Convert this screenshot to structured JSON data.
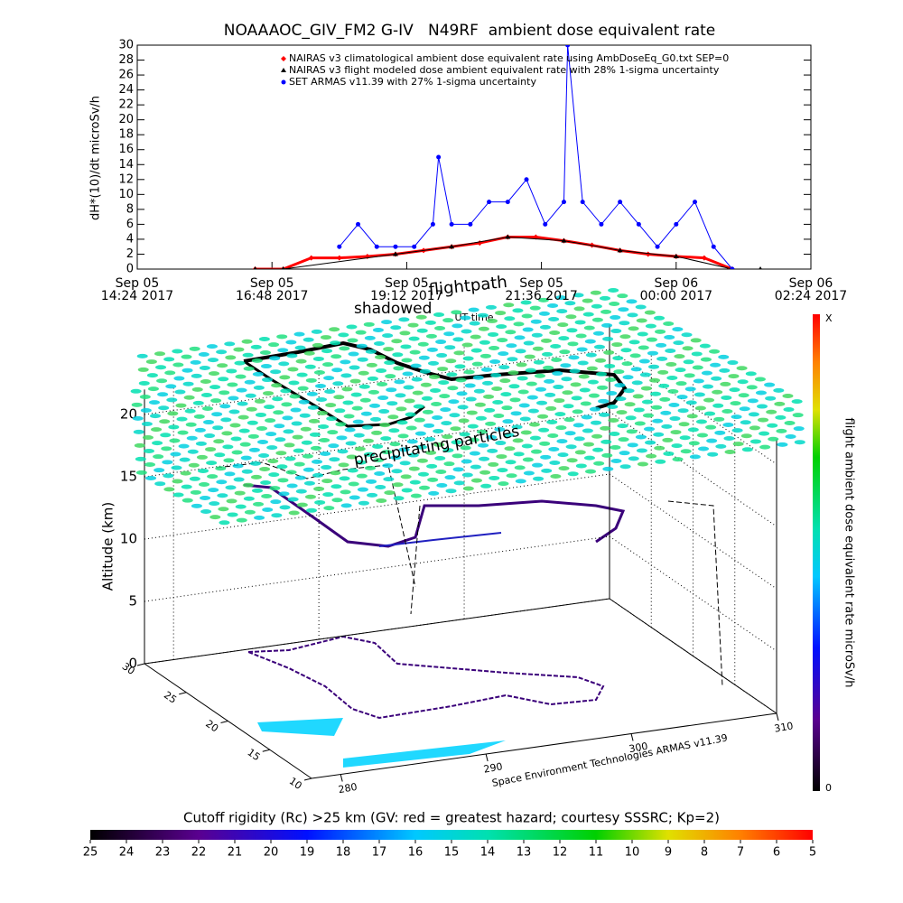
{
  "chart_data": [
    {
      "type": "line",
      "title": "NOAAAOC_GIV_FM2 G-IV   N49RF  ambient dose equivalent rate",
      "ylabel": "dH*(10)/dt microSv/h",
      "xlabel": "UT time",
      "xlim": [
        "2017-09-05 14:24",
        "2017-09-06 02:24"
      ],
      "xticks": [
        {
          "value": "2017-09-05 14:24",
          "label": [
            "Sep 05",
            "14:24 2017"
          ]
        },
        {
          "value": "2017-09-05 16:48",
          "label": [
            "Sep 05",
            "16:48 2017"
          ]
        },
        {
          "value": "2017-09-05 19:12",
          "label": [
            "Sep 05",
            "19:12 2017"
          ]
        },
        {
          "value": "2017-09-05 21:36",
          "label": [
            "Sep 05",
            "21:36 2017"
          ]
        },
        {
          "value": "2017-09-06 00:00",
          "label": [
            "Sep 06",
            "00:00 2017"
          ]
        },
        {
          "value": "2017-09-06 02:24",
          "label": [
            "Sep 06",
            "02:24 2017"
          ]
        }
      ],
      "ylim": [
        0,
        30
      ],
      "yticks": [
        0,
        2,
        4,
        6,
        8,
        10,
        12,
        14,
        16,
        18,
        20,
        22,
        24,
        26,
        28,
        30
      ],
      "legend": "top",
      "series": [
        {
          "name": "NAIRAS v3 climatological ambient dose equivalent rate using AmbDoseEq_G0.txt SEP=0",
          "color": "#ff0000",
          "marker": "diamond",
          "x": [
            "2017-09-05 16:30",
            "2017-09-05 17:00",
            "2017-09-05 17:30",
            "2017-09-05 18:00",
            "2017-09-05 18:30",
            "2017-09-05 19:00",
            "2017-09-05 19:30",
            "2017-09-05 20:00",
            "2017-09-05 20:30",
            "2017-09-05 21:00",
            "2017-09-05 21:30",
            "2017-09-05 22:00",
            "2017-09-05 22:30",
            "2017-09-05 23:00",
            "2017-09-05 23:30",
            "2017-09-06 00:00",
            "2017-09-06 00:30",
            "2017-09-06 01:00"
          ],
          "values": [
            0,
            0,
            1.5,
            1.5,
            1.7,
            2,
            2.5,
            3,
            3.5,
            4.3,
            4.3,
            3.8,
            3.2,
            2.5,
            2,
            1.7,
            1.5,
            0
          ]
        },
        {
          "name": "NAIRAS v3 flight modeled dose ambient equivalent rate with 28% 1-sigma uncertainty",
          "color": "#000000",
          "marker": "triangle",
          "x": [
            "2017-09-05 16:30",
            "2017-09-05 17:00",
            "2017-09-05 19:00",
            "2017-09-05 20:00",
            "2017-09-05 21:00",
            "2017-09-05 22:00",
            "2017-09-05 23:00",
            "2017-09-06 00:00",
            "2017-09-06 01:00",
            "2017-09-06 01:30"
          ],
          "values": [
            0,
            0,
            2,
            3,
            4.3,
            3.8,
            2.5,
            1.7,
            0,
            0
          ]
        },
        {
          "name": "SET ARMAS v11.39 with 27% 1-sigma uncertainty",
          "color": "#0000ff",
          "marker": "circle",
          "x": [
            "2017-09-05 18:00",
            "2017-09-05 18:20",
            "2017-09-05 18:40",
            "2017-09-05 19:00",
            "2017-09-05 19:20",
            "2017-09-05 19:40",
            "2017-09-05 19:46",
            "2017-09-05 20:00",
            "2017-09-05 20:20",
            "2017-09-05 20:40",
            "2017-09-05 21:00",
            "2017-09-05 21:20",
            "2017-09-05 21:40",
            "2017-09-05 22:00",
            "2017-09-05 22:04",
            "2017-09-05 22:20",
            "2017-09-05 22:40",
            "2017-09-05 23:00",
            "2017-09-05 23:20",
            "2017-09-05 23:40",
            "2017-09-06 00:00",
            "2017-09-06 00:20",
            "2017-09-06 00:40",
            "2017-09-06 01:00"
          ],
          "values": [
            3,
            6,
            3,
            3,
            3,
            6,
            15,
            6,
            6,
            9,
            9,
            12,
            6,
            9,
            30,
            9,
            6,
            9,
            6,
            3,
            6,
            9,
            3,
            0
          ]
        }
      ]
    },
    {
      "type": "surface3d",
      "zlabel": "Altitude (km)",
      "zlim": [
        0,
        20
      ],
      "zticks": [
        0,
        5,
        10,
        15,
        20
      ],
      "ylim": [
        10,
        30
      ],
      "yticks": [
        10,
        15,
        20,
        25,
        30
      ],
      "xlim": [
        278,
        310
      ],
      "xticks": [
        280,
        290,
        300,
        310
      ],
      "annotations": [
        "shadowed",
        "flightpath",
        "precipitating particles"
      ],
      "caption": "Space Environment Technologies ARMAS v11.39",
      "colorbar": {
        "label": "flight ambient dose equivalent rate microSv/h",
        "top_label": "X",
        "bottom_label": 0
      },
      "rigidity_colorbar": {
        "label": "Cutoff rigidity (Rc) >25 km (GV: red = greatest hazard; courtesy SSSRC; Kp=2)",
        "clim": [
          25,
          5
        ],
        "ticks": [
          25,
          24,
          23,
          22,
          21,
          20,
          19,
          18,
          17,
          16,
          15,
          14,
          13,
          12,
          11,
          10,
          9,
          8,
          7,
          6,
          5
        ]
      }
    }
  ]
}
